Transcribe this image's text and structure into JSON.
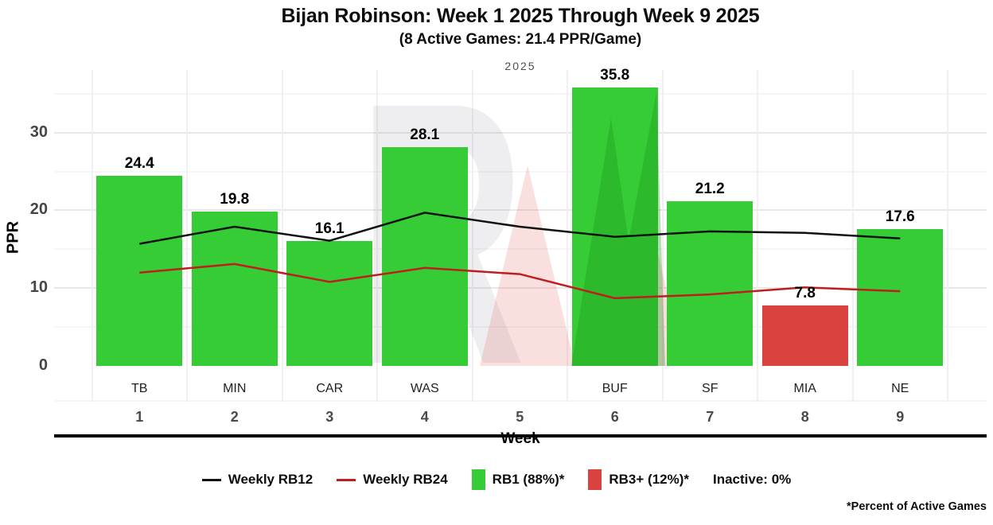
{
  "chart_data": {
    "type": "bar+line",
    "title": "Bijan Robinson: Week 1 2025 Through Week 9 2025",
    "subtitle": "(8 Active Games: 21.4 PPR/Game)",
    "facet_label": "2025",
    "xlabel": "Week",
    "ylabel": "PPR",
    "ylim": [
      0,
      38
    ],
    "grid": true,
    "y_ticks": [
      0,
      10,
      20,
      30
    ],
    "y_gridlines_major": [
      10,
      20,
      30
    ],
    "y_gridlines_minor": [
      5,
      15,
      25,
      35
    ],
    "categories": [
      {
        "week": "1",
        "team": "TB"
      },
      {
        "week": "2",
        "team": "MIN"
      },
      {
        "week": "3",
        "team": "CAR"
      },
      {
        "week": "4",
        "team": "WAS"
      },
      {
        "week": "5",
        "team": ""
      },
      {
        "week": "6",
        "team": "BUF"
      },
      {
        "week": "7",
        "team": "SF"
      },
      {
        "week": "8",
        "team": "MIA"
      },
      {
        "week": "9",
        "team": "NE"
      }
    ],
    "bars": {
      "name": "Weekly PPR",
      "values": [
        24.4,
        19.8,
        16.1,
        28.1,
        null,
        35.8,
        21.2,
        7.8,
        17.6
      ],
      "tiers": [
        "RB1",
        "RB1",
        "RB1",
        "RB1",
        null,
        "RB1",
        "RB1",
        "RB3+",
        "RB1"
      ]
    },
    "tier_colors": {
      "RB1": "#35CC35",
      "RB3+": "#D9423E"
    },
    "series": [
      {
        "name": "Weekly RB12",
        "color": "#111111",
        "values": [
          15.7,
          17.9,
          16.1,
          19.7,
          17.9,
          16.6,
          17.3,
          17.1,
          16.4
        ]
      },
      {
        "name": "Weekly RB24",
        "color": "#BE1E1E",
        "values": [
          12.0,
          13.1,
          10.8,
          12.6,
          11.8,
          8.7,
          9.2,
          10.1,
          9.6
        ]
      }
    ],
    "legend_position": "bottom"
  },
  "legend": {
    "items": [
      {
        "key": "line",
        "color": "#111111",
        "label": "Weekly RB12"
      },
      {
        "key": "line",
        "color": "#BE1E1E",
        "label": "Weekly RB24"
      },
      {
        "key": "swatch",
        "color": "#35CC35",
        "label": "RB1 (88%)*"
      },
      {
        "key": "swatch",
        "color": "#D9423E",
        "label": "RB3+ (12%)*"
      },
      {
        "key": "none",
        "color": "",
        "label": "Inactive: 0%"
      }
    ]
  },
  "footnote": "*Percent of Active Games",
  "watermark": {
    "letter": "R"
  }
}
